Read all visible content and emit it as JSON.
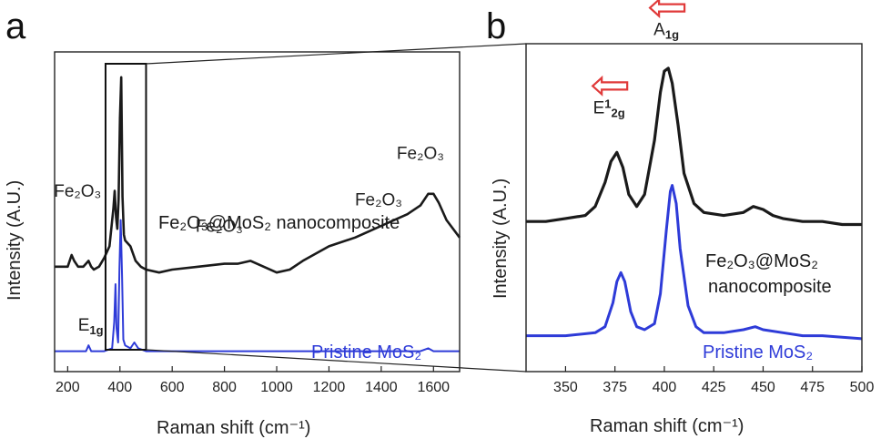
{
  "colors": {
    "composite": "#1a1a1a",
    "pristine": "#2e3bd8",
    "shift_arrow": "#e03a3a"
  },
  "chart_data": [
    {
      "panel": "a",
      "type": "line",
      "xlabel": "Raman shift (cm⁻¹)",
      "ylabel": "Intensity (A.U.)",
      "xlim": [
        150,
        1700
      ],
      "xticks": [
        200,
        400,
        600,
        800,
        1000,
        1200,
        1400,
        1600
      ],
      "grid": false,
      "inset_region": [
        345,
        500
      ],
      "series": [
        {
          "name": "Fe₂O₃@MoS₂ nanocomposite",
          "color_key": "composite",
          "x": [
            150,
            200,
            215,
            225,
            240,
            260,
            280,
            290,
            300,
            320,
            340,
            360,
            375,
            380,
            385,
            390,
            395,
            400,
            405,
            410,
            415,
            420,
            440,
            460,
            480,
            500,
            550,
            600,
            700,
            800,
            850,
            900,
            950,
            1000,
            1050,
            1100,
            1200,
            1300,
            1400,
            1450,
            1500,
            1550,
            1580,
            1600,
            1620,
            1650,
            1700
          ],
          "y": [
            0.31,
            0.31,
            0.35,
            0.33,
            0.31,
            0.31,
            0.33,
            0.31,
            0.3,
            0.31,
            0.34,
            0.38,
            0.51,
            0.57,
            0.48,
            0.44,
            0.54,
            0.82,
            0.96,
            0.55,
            0.42,
            0.4,
            0.38,
            0.33,
            0.31,
            0.3,
            0.29,
            0.3,
            0.31,
            0.32,
            0.32,
            0.33,
            0.31,
            0.29,
            0.3,
            0.33,
            0.38,
            0.41,
            0.45,
            0.47,
            0.49,
            0.52,
            0.56,
            0.56,
            0.53,
            0.47,
            0.41
          ]
        },
        {
          "name": "Pristine MoS₂",
          "color_key": "pristine",
          "x": [
            150,
            270,
            280,
            290,
            340,
            370,
            378,
            383,
            387,
            393,
            398,
            403,
            408,
            413,
            420,
            440,
            455,
            470,
            500,
            600,
            800,
            1000,
            1200,
            1400,
            1550,
            1580,
            1600,
            1700
          ],
          "y": [
            0.02,
            0.02,
            0.04,
            0.02,
            0.02,
            0.03,
            0.12,
            0.25,
            0.1,
            0.05,
            0.3,
            0.47,
            0.28,
            0.06,
            0.04,
            0.03,
            0.05,
            0.03,
            0.02,
            0.02,
            0.02,
            0.02,
            0.02,
            0.02,
            0.02,
            0.03,
            0.02,
            0.02
          ]
        }
      ],
      "annotations": [
        {
          "text": "Fe₂O₃",
          "x": 238,
          "y": 0.55
        },
        {
          "text": "Fe₂O₃",
          "x": 780,
          "y": 0.43
        },
        {
          "text": "Fe₂O₃",
          "x": 1390,
          "y": 0.52
        },
        {
          "text": "Fe₂O₃",
          "x": 1550,
          "y": 0.68
        }
      ],
      "peak_label": {
        "base": "E",
        "sub": "1g",
        "x": 288,
        "y": 0.09
      },
      "legend_composite": "Fe₂O₃@MoS₂ nanocomposite",
      "legend_pristine": "Pristine MoS₂",
      "panel_label": "a"
    },
    {
      "panel": "b",
      "type": "line",
      "xlabel": "Raman shift (cm⁻¹)",
      "ylabel": "Intensity (A.U.)",
      "xlim": [
        330,
        500
      ],
      "xticks": [
        350,
        375,
        400,
        425,
        450,
        475,
        500
      ],
      "grid": false,
      "series": [
        {
          "name": "Fe₂O₃@MoS₂ nanocomposite",
          "color_key": "composite",
          "x": [
            330,
            340,
            350,
            360,
            365,
            370,
            373,
            376,
            379,
            382,
            386,
            390,
            395,
            398,
            400,
            402,
            404,
            407,
            410,
            415,
            420,
            430,
            440,
            445,
            450,
            455,
            460,
            470,
            480,
            490,
            500
          ],
          "y": [
            0.46,
            0.46,
            0.47,
            0.48,
            0.51,
            0.59,
            0.66,
            0.69,
            0.64,
            0.55,
            0.51,
            0.55,
            0.73,
            0.89,
            0.96,
            0.97,
            0.92,
            0.78,
            0.62,
            0.52,
            0.49,
            0.48,
            0.49,
            0.51,
            0.5,
            0.48,
            0.47,
            0.46,
            0.46,
            0.45,
            0.45
          ]
        },
        {
          "name": "Pristine MoS₂",
          "color_key": "pristine",
          "x": [
            330,
            350,
            365,
            370,
            374,
            376,
            378,
            380,
            383,
            386,
            390,
            395,
            398,
            401,
            403,
            404,
            406,
            408,
            412,
            416,
            420,
            430,
            440,
            446,
            450,
            460,
            470,
            480,
            500
          ],
          "y": [
            0.08,
            0.08,
            0.09,
            0.11,
            0.19,
            0.26,
            0.29,
            0.26,
            0.16,
            0.11,
            0.1,
            0.12,
            0.22,
            0.43,
            0.56,
            0.58,
            0.52,
            0.37,
            0.18,
            0.11,
            0.09,
            0.09,
            0.1,
            0.11,
            0.1,
            0.09,
            0.08,
            0.08,
            0.07
          ]
        }
      ],
      "peak_labels": [
        {
          "base": "E",
          "sup": "1",
          "sub": "2g",
          "x": 372,
          "y": 0.82,
          "shift_arrow": true
        },
        {
          "base": "A",
          "sub": "1g",
          "x": 401,
          "y": 1.08,
          "shift_arrow": true
        }
      ],
      "legend_composite_line1": "Fe₂O₃@MoS₂",
      "legend_composite_line2": "nanocomposite",
      "legend_pristine": "Pristine MoS₂",
      "panel_label": "b"
    }
  ]
}
